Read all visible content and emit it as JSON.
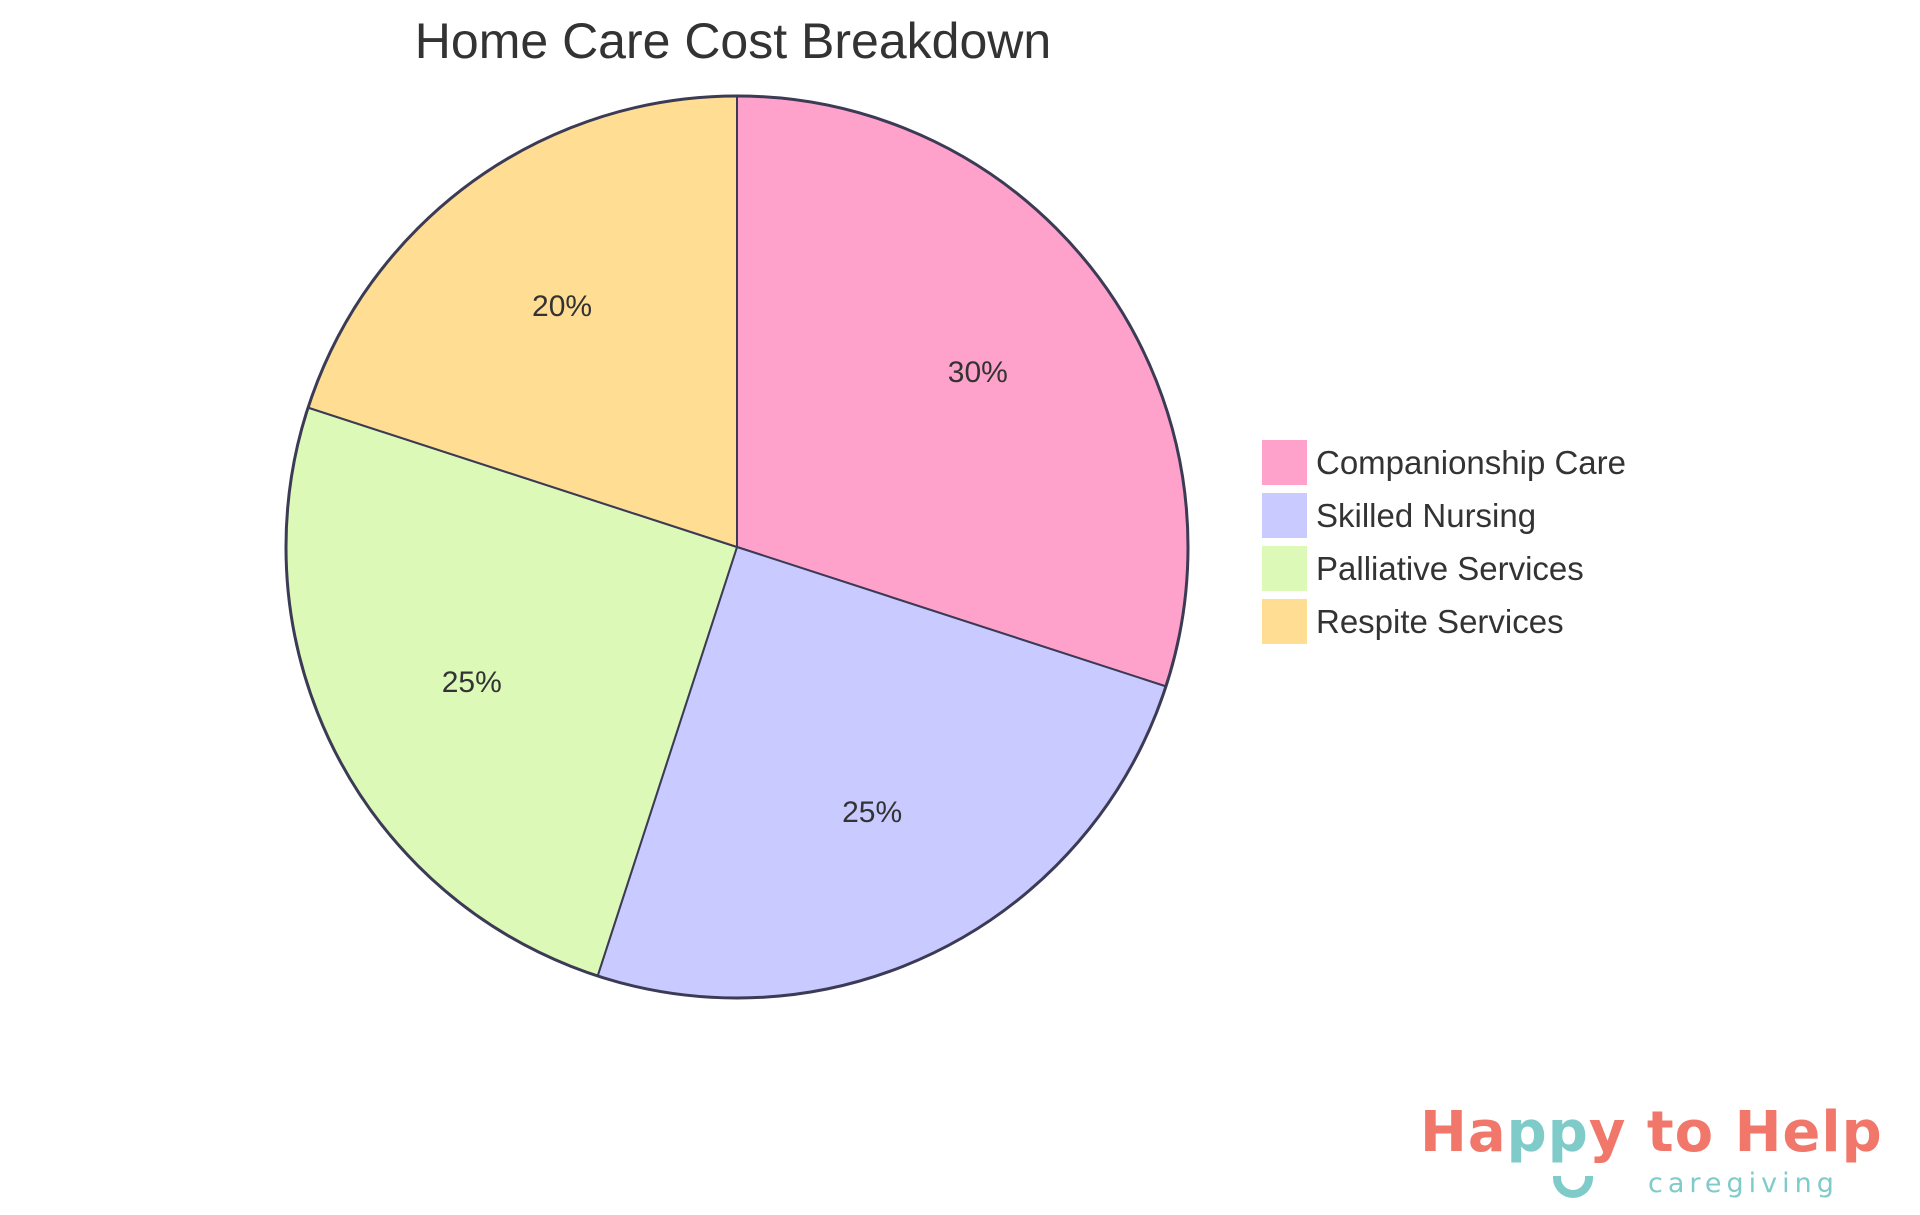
{
  "chart_data": {
    "type": "pie",
    "title": "Home Care Cost Breakdown",
    "categories": [
      "Companionship Care",
      "Skilled Nursing",
      "Palliative Services",
      "Respite Services"
    ],
    "values": [
      30,
      25,
      25,
      20
    ],
    "labels": [
      "30%",
      "25%",
      "25%",
      "20%"
    ],
    "colors": [
      "#ffa2cb",
      "#c9caff",
      "#dcf9b8",
      "#ffdd93"
    ],
    "stroke_color": "#3b3b55",
    "legend_position": "right",
    "start_angle_deg": 0,
    "direction": "clockwise"
  },
  "legend": {
    "items": [
      {
        "label": "Companionship Care",
        "color": "#ffa2cb"
      },
      {
        "label": "Skilled Nursing",
        "color": "#c9caff"
      },
      {
        "label": "Palliative Services",
        "color": "#dcf9b8"
      },
      {
        "label": "Respite Services",
        "color": "#ffdd93"
      }
    ]
  },
  "logo": {
    "part1": "Ha",
    "part2": "pp",
    "part3": "y to Help",
    "subtitle": "caregiving",
    "primary_color": "#f0776a",
    "secondary_color": "#7ecbca"
  }
}
